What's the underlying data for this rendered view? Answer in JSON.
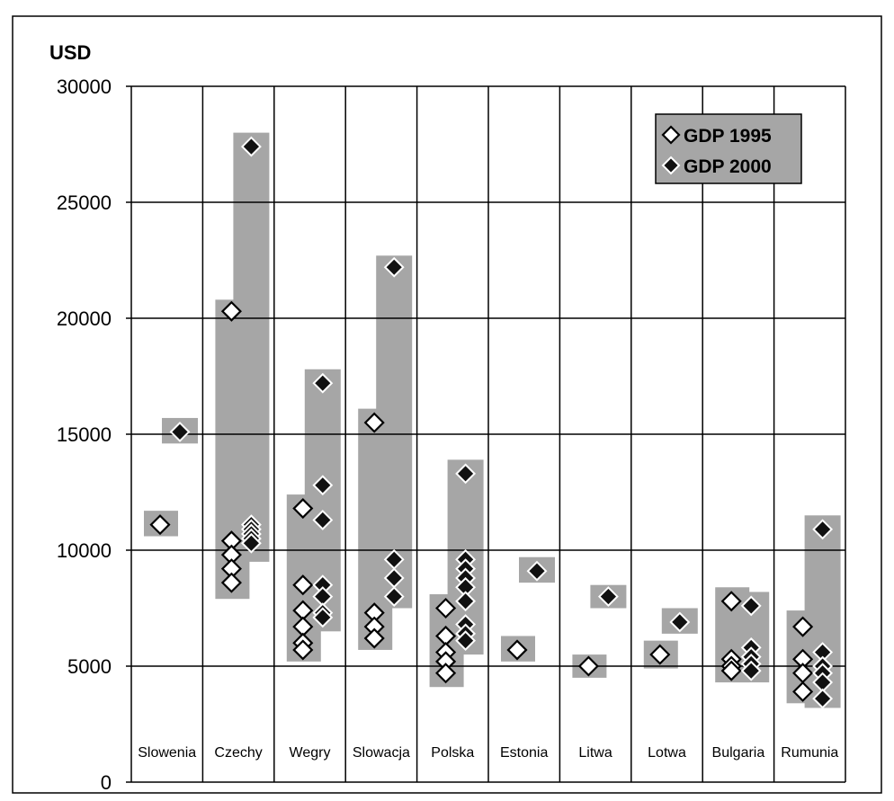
{
  "chart_data": {
    "type": "scatter",
    "ylabel": "USD",
    "ylim": [
      0,
      30000
    ],
    "yticks": [
      0,
      5000,
      10000,
      15000,
      20000,
      25000,
      30000
    ],
    "grid": true,
    "legend_position": "top-right",
    "categories": [
      "Slowenia",
      "Czechy",
      "Wegry",
      "Slowacja",
      "Polska",
      "Estonia",
      "Litwa",
      "Lotwa",
      "Bulgaria",
      "Rumunia"
    ],
    "series": [
      {
        "name": "GDP 1995",
        "marker": "open-diamond",
        "points": [
          [
            11100
          ],
          [
            20300,
            10400,
            9800,
            9200,
            8600
          ],
          [
            11800,
            8500,
            7400,
            6700,
            6000,
            5700
          ],
          [
            15500,
            7300,
            6700,
            6200
          ],
          [
            7500,
            6300,
            5600,
            5200,
            4700
          ],
          [
            5700
          ],
          [
            5000
          ],
          [
            5500
          ],
          [
            7800,
            5300,
            5000,
            4800
          ],
          [
            6700,
            5300,
            4700,
            3900
          ]
        ]
      },
      {
        "name": "GDP 2000",
        "marker": "filled-diamond",
        "points": [
          [
            15100
          ],
          [
            27400,
            11100,
            10900,
            10700,
            10500,
            10300
          ],
          [
            17200,
            12800,
            11300,
            8500,
            8000,
            7300,
            7100
          ],
          [
            22200,
            9600,
            8800,
            8000
          ],
          [
            13300,
            9600,
            9200,
            8800,
            8400,
            7800,
            6800,
            6400,
            6100
          ],
          [
            9100
          ],
          [
            8000
          ],
          [
            6900
          ],
          [
            7600,
            5800,
            5400,
            5100,
            4800
          ],
          [
            10900,
            5600,
            5000,
            4700,
            4300,
            3600
          ]
        ]
      }
    ],
    "ranges_1995": [
      [
        10600,
        11700
      ],
      [
        7900,
        20800
      ],
      [
        5200,
        12400
      ],
      [
        5700,
        16100
      ],
      [
        4100,
        8100
      ],
      [
        5200,
        6300
      ],
      [
        4500,
        5500
      ],
      [
        4900,
        6100
      ],
      [
        4300,
        8400
      ],
      [
        3400,
        7400
      ]
    ],
    "ranges_2000": [
      [
        14600,
        15700
      ],
      [
        9500,
        28000
      ],
      [
        6500,
        17800
      ],
      [
        7500,
        22700
      ],
      [
        5500,
        13900
      ],
      [
        8600,
        9700
      ],
      [
        7500,
        8500
      ],
      [
        6400,
        7500
      ],
      [
        4300,
        8200
      ],
      [
        3200,
        11500
      ]
    ]
  },
  "colors": {
    "band": "#a6a6a6",
    "marker_1995_fill": "#ffffff",
    "marker_2000_fill": "#111111"
  }
}
